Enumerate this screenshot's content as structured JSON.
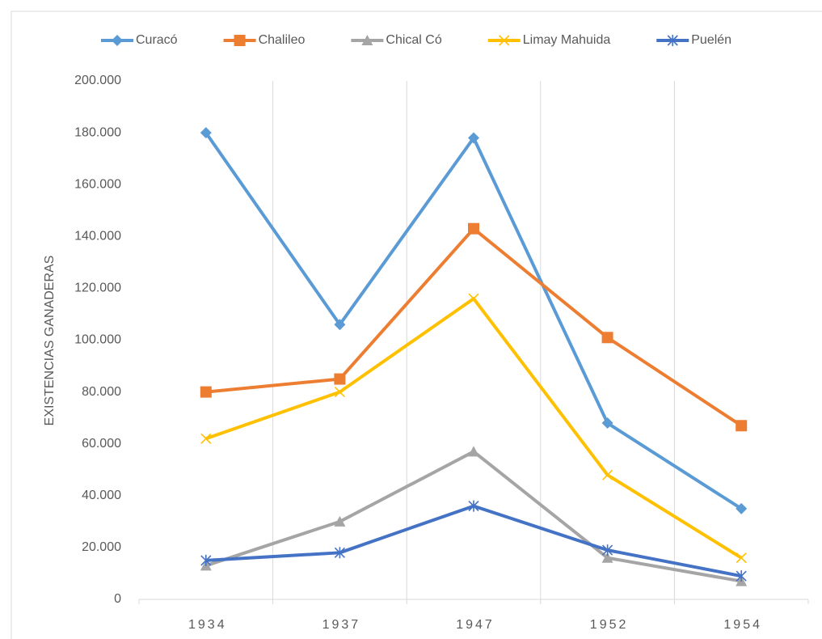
{
  "chart_data": {
    "type": "line",
    "y_label": "EXISTENCIAS GANADERAS",
    "categories": [
      "1934",
      "1937",
      "1947",
      "1952",
      "1954"
    ],
    "series": [
      {
        "name": "Curacó",
        "color": "#5b9bd5",
        "marker": "diamond",
        "values": [
          180000,
          106000,
          178000,
          68000,
          35000
        ]
      },
      {
        "name": "Chalileo",
        "color": "#ed7d31",
        "marker": "square",
        "values": [
          80000,
          85000,
          143000,
          101000,
          67000
        ]
      },
      {
        "name": "Chical Có",
        "color": "#a5a5a5",
        "marker": "triangle",
        "values": [
          13000,
          30000,
          57000,
          16000,
          7000
        ]
      },
      {
        "name": "Limay Mahuida",
        "color": "#ffc000",
        "marker": "x",
        "values": [
          62000,
          80000,
          116000,
          48000,
          16000
        ]
      },
      {
        "name": "Puelén",
        "color": "#4472c4",
        "marker": "star",
        "values": [
          15000,
          18000,
          36000,
          19000,
          9000
        ]
      }
    ],
    "ylim": [
      0,
      200000
    ],
    "yticks": [
      0,
      {
        "value": 20000,
        "label": "20.000"
      },
      {
        "value": 40000,
        "label": "40.000"
      },
      {
        "value": 60000,
        "label": "60.000"
      },
      {
        "value": 80000,
        "label": "80.000"
      },
      {
        "value": 100000,
        "label": "100.000"
      },
      {
        "value": 120000,
        "label": "120.000"
      },
      {
        "value": 140000,
        "label": "140.000"
      },
      {
        "value": 160000,
        "label": "160.000"
      },
      {
        "value": 180000,
        "label": "180.000"
      },
      {
        "value": 200000,
        "label": "200.000"
      }
    ],
    "xgrid": true,
    "legend": "top"
  }
}
